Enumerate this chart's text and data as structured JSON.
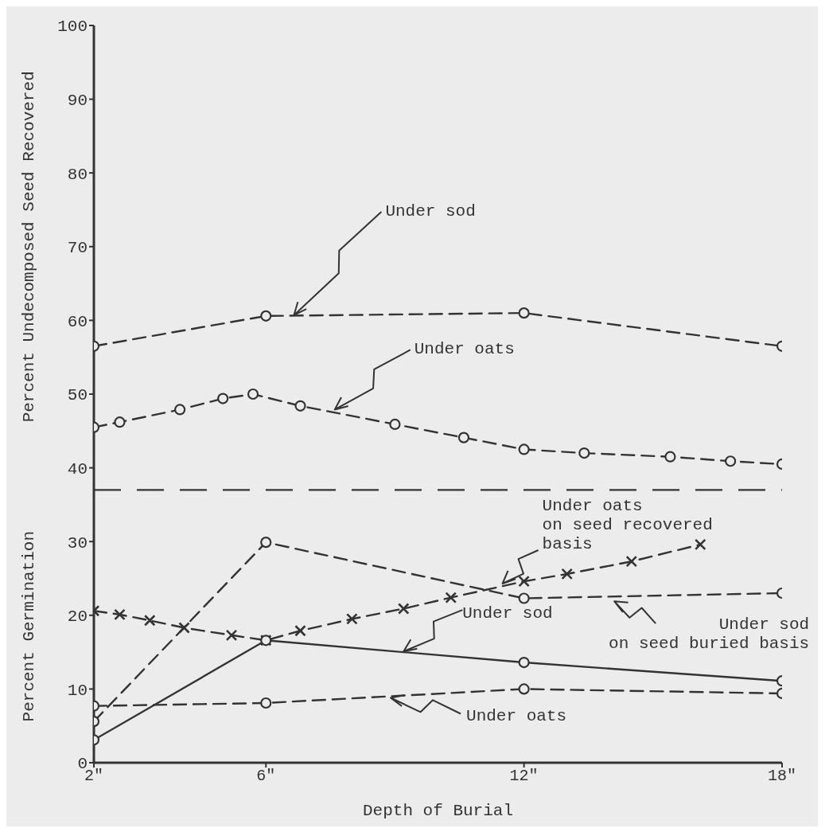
{
  "chart_data": {
    "type": "line",
    "xlabel": "Depth of Burial",
    "ylabel": "Percent Undecomposed Seed Recovered",
    "xlim": [
      2,
      18
    ],
    "xticks": [
      {
        "value": 2,
        "label": "2\""
      },
      {
        "value": 6,
        "label": "6\""
      },
      {
        "value": 12,
        "label": "12\""
      },
      {
        "value": 18,
        "label": "18\""
      }
    ],
    "ylim": [
      0,
      100
    ],
    "yticks": [
      0,
      10,
      20,
      30,
      40,
      50,
      60,
      70,
      80,
      90,
      100
    ],
    "series": [
      {
        "color": "#333333",
        "marker": "circle",
        "line_style": "dashed",
        "x": [
          2,
          6,
          12,
          18
        ],
        "values": [
          56.5,
          60.6,
          61,
          56.5
        ]
      },
      {
        "color": "#333333",
        "marker": "circle",
        "line_style": "dashed",
        "x": [
          2,
          2.6,
          4.0,
          5.0,
          5.7,
          6.8,
          9.0,
          10.6,
          12,
          13.4,
          15.4,
          16.8,
          18
        ],
        "values": [
          45.5,
          46.2,
          47.9,
          49.4,
          50,
          48.4,
          45.9,
          44.1,
          42.5,
          42,
          41.5,
          40.9,
          40.5
        ]
      },
      {
        "color": "#333333",
        "marker": "cross",
        "line_style": "dashed",
        "x": [
          2,
          2.6,
          3.3,
          4.1,
          5.2,
          6,
          6.8,
          8.0,
          9.2,
          10.3,
          12,
          13.0,
          14.5,
          16.1
        ],
        "values": [
          20.6,
          20.1,
          19.3,
          18.3,
          17.3,
          16.6,
          17.9,
          19.5,
          20.9,
          22.4,
          24.6,
          25.6,
          27.3,
          29.6
        ]
      },
      {
        "color": "#333333",
        "marker": "circle",
        "line_style": "dashed",
        "x": [
          2,
          6,
          12,
          18
        ],
        "values": [
          5.6,
          29.9,
          22.3,
          23
        ]
      },
      {
        "color": "#333333",
        "marker": "circle",
        "line_style": "solid",
        "x": [
          2,
          6,
          12,
          18
        ],
        "values": [
          3.1,
          16.6,
          13.6,
          11.1
        ]
      },
      {
        "color": "#333333",
        "marker": "circle",
        "line_style": "dashed",
        "x": [
          2,
          6,
          12,
          18
        ],
        "values": [
          7.7,
          8.1,
          10.0,
          9.4
        ]
      }
    ],
    "ref_lines": [
      {
        "axis": "y",
        "value": 37,
        "line_style": "dashed",
        "color": "#333333"
      }
    ],
    "annotations": [
      {
        "text": "Under sod",
        "x": 6.65,
        "y": 60.7
      },
      {
        "text": "Under oats",
        "x": 7.6,
        "y": 47.9
      },
      {
        "text": "Under oats\non seed recovered\nbasis",
        "x": 11.5,
        "y": 24.3
      },
      {
        "text": "Under sod\non seed buried basis",
        "x": 14.1,
        "y": 21.9
      },
      {
        "text": "Under sod",
        "x": 9.2,
        "y": 15.1
      },
      {
        "text": "Under oats",
        "x": 8.9,
        "y": 8.8
      },
      "Percent Germination"
    ]
  }
}
